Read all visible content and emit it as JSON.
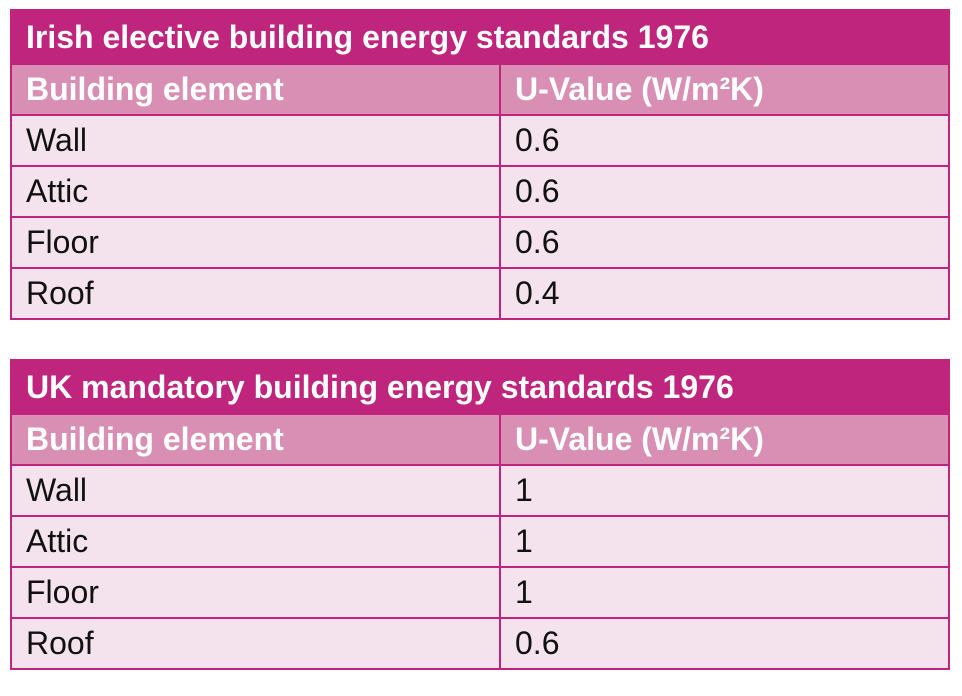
{
  "tables": [
    {
      "title": "Irish elective building energy standards 1976",
      "headers": [
        "Building element",
        "U-Value (W/m²K)"
      ],
      "rows": [
        [
          "Wall",
          "0.6"
        ],
        [
          "Attic",
          "0.6"
        ],
        [
          "Floor",
          "0.6"
        ],
        [
          "Roof",
          "0.4"
        ]
      ]
    },
    {
      "title": "UK mandatory building energy standards 1976",
      "headers": [
        "Building element",
        "U-Value (W/m²K)"
      ],
      "rows": [
        [
          "Wall",
          "1"
        ],
        [
          "Attic",
          "1"
        ],
        [
          "Floor",
          "1"
        ],
        [
          "Roof",
          "0.6"
        ]
      ]
    }
  ]
}
